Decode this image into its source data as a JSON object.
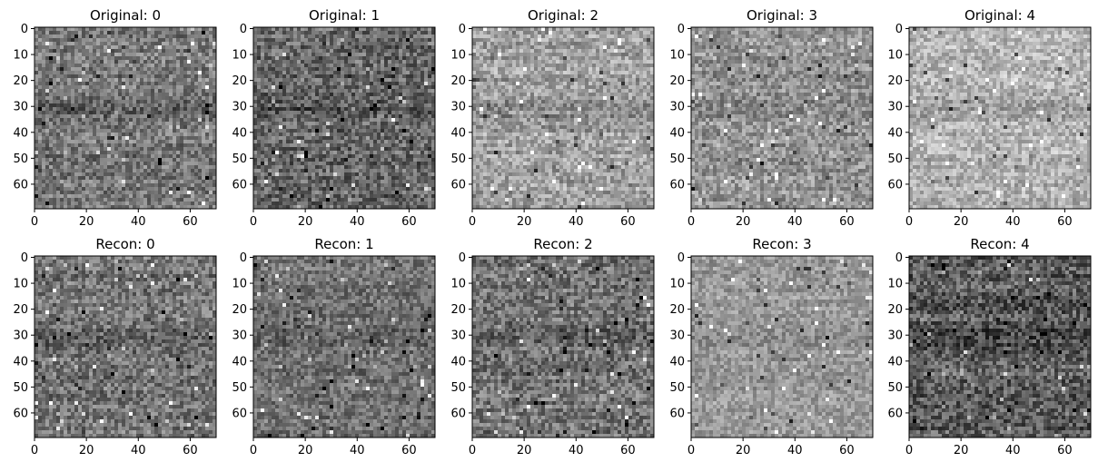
{
  "chart_data": [
    {
      "type": "heatmap",
      "title": "Original: 0",
      "xticks": [
        "0",
        "20",
        "40",
        "60"
      ],
      "yticks": [
        "0",
        "10",
        "20",
        "30",
        "40",
        "50",
        "60"
      ],
      "xlim": [
        0,
        70
      ],
      "ylim": [
        70,
        0
      ],
      "colormap": "gray",
      "mean_gray": 0.47,
      "contrast": 0.16
    },
    {
      "type": "heatmap",
      "title": "Original: 1",
      "xticks": [
        "0",
        "20",
        "40",
        "60"
      ],
      "yticks": [
        "0",
        "10",
        "20",
        "30",
        "40",
        "50",
        "60"
      ],
      "xlim": [
        0,
        70
      ],
      "ylim": [
        70,
        0
      ],
      "colormap": "gray",
      "mean_gray": 0.4,
      "contrast": 0.17
    },
    {
      "type": "heatmap",
      "title": "Original: 2",
      "xticks": [
        "0",
        "20",
        "40",
        "60"
      ],
      "yticks": [
        "0",
        "10",
        "20",
        "30",
        "40",
        "50",
        "60"
      ],
      "xlim": [
        0,
        70
      ],
      "ylim": [
        70,
        0
      ],
      "colormap": "gray",
      "mean_gray": 0.63,
      "contrast": 0.15
    },
    {
      "type": "heatmap",
      "title": "Original: 3",
      "xticks": [
        "0",
        "20",
        "40",
        "60"
      ],
      "yticks": [
        "0",
        "10",
        "20",
        "30",
        "40",
        "50",
        "60"
      ],
      "xlim": [
        0,
        70
      ],
      "ylim": [
        70,
        0
      ],
      "colormap": "gray",
      "mean_gray": 0.58,
      "contrast": 0.15
    },
    {
      "type": "heatmap",
      "title": "Original: 4",
      "xticks": [
        "0",
        "20",
        "40",
        "60"
      ],
      "yticks": [
        "0",
        "10",
        "20",
        "30",
        "40",
        "50",
        "60"
      ],
      "xlim": [
        0,
        70
      ],
      "ylim": [
        70,
        0
      ],
      "colormap": "gray",
      "mean_gray": 0.7,
      "contrast": 0.14
    },
    {
      "type": "heatmap",
      "title": "Recon: 0",
      "xticks": [
        "0",
        "20",
        "40",
        "60"
      ],
      "yticks": [
        "0",
        "10",
        "20",
        "30",
        "40",
        "50",
        "60"
      ],
      "xlim": [
        0,
        70
      ],
      "ylim": [
        70,
        0
      ],
      "colormap": "gray",
      "mean_gray": 0.46,
      "contrast": 0.16
    },
    {
      "type": "heatmap",
      "title": "Recon: 1",
      "xticks": [
        "0",
        "20",
        "40",
        "60"
      ],
      "yticks": [
        "0",
        "10",
        "20",
        "30",
        "40",
        "50",
        "60"
      ],
      "xlim": [
        0,
        70
      ],
      "ylim": [
        70,
        0
      ],
      "colormap": "gray",
      "mean_gray": 0.44,
      "contrast": 0.14
    },
    {
      "type": "heatmap",
      "title": "Recon: 2",
      "xticks": [
        "0",
        "20",
        "40",
        "60"
      ],
      "yticks": [
        "0",
        "10",
        "20",
        "30",
        "40",
        "50",
        "60"
      ],
      "xlim": [
        0,
        70
      ],
      "ylim": [
        70,
        0
      ],
      "colormap": "gray",
      "mean_gray": 0.45,
      "contrast": 0.17
    },
    {
      "type": "heatmap",
      "title": "Recon: 3",
      "xticks": [
        "0",
        "20",
        "40",
        "60"
      ],
      "yticks": [
        "0",
        "10",
        "20",
        "30",
        "40",
        "50",
        "60"
      ],
      "xlim": [
        0,
        70
      ],
      "ylim": [
        70,
        0
      ],
      "colormap": "gray",
      "mean_gray": 0.6,
      "contrast": 0.12
    },
    {
      "type": "heatmap",
      "title": "Recon: 4",
      "xticks": [
        "0",
        "20",
        "40",
        "60"
      ],
      "yticks": [
        "0",
        "10",
        "20",
        "30",
        "40",
        "50",
        "60"
      ],
      "xlim": [
        0,
        70
      ],
      "ylim": [
        70,
        0
      ],
      "colormap": "gray",
      "mean_gray": 0.36,
      "contrast": 0.18
    }
  ]
}
